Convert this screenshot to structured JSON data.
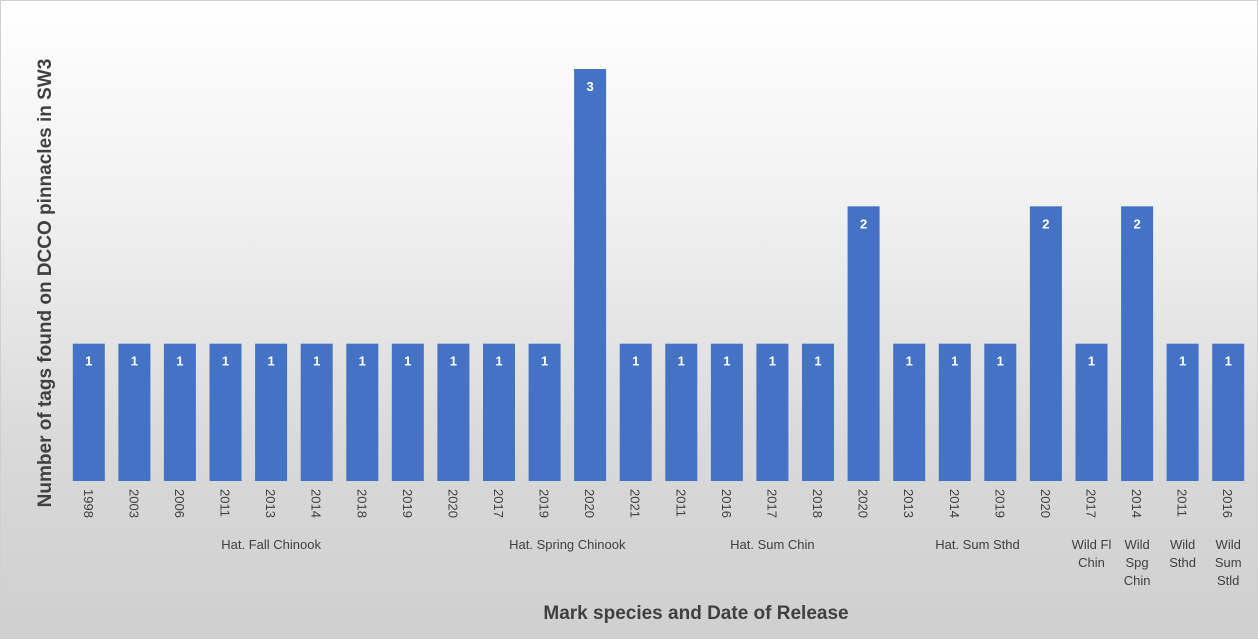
{
  "chart_data": {
    "type": "bar",
    "xlabel": "Mark species and Date of Release",
    "ylabel": "Number of tags found on DCCO pinnacles in SW3",
    "ylim": [
      0,
      3
    ],
    "grid": false,
    "legend": "none",
    "bar_color": "#4472c4",
    "categories": [
      {
        "year": "1998",
        "group": "Hat. Fall Chinook",
        "value": 1
      },
      {
        "year": "2003",
        "group": "Hat. Fall Chinook",
        "value": 1
      },
      {
        "year": "2006",
        "group": "Hat. Fall Chinook",
        "value": 1
      },
      {
        "year": "2011",
        "group": "Hat. Fall Chinook",
        "value": 1
      },
      {
        "year": "2013",
        "group": "Hat. Fall Chinook",
        "value": 1
      },
      {
        "year": "2014",
        "group": "Hat. Fall Chinook",
        "value": 1
      },
      {
        "year": "2018",
        "group": "Hat. Fall Chinook",
        "value": 1
      },
      {
        "year": "2019",
        "group": "Hat. Fall Chinook",
        "value": 1
      },
      {
        "year": "2020",
        "group": "Hat. Fall Chinook",
        "value": 1
      },
      {
        "year": "2017",
        "group": "Hat. Spring Chinook",
        "value": 1
      },
      {
        "year": "2019",
        "group": "Hat. Spring Chinook",
        "value": 1
      },
      {
        "year": "2020",
        "group": "Hat. Spring Chinook",
        "value": 3
      },
      {
        "year": "2021",
        "group": "Hat. Spring Chinook",
        "value": 1
      },
      {
        "year": "2011",
        "group": "Hat. Sum Chin",
        "value": 1
      },
      {
        "year": "2016",
        "group": "Hat. Sum Chin",
        "value": 1
      },
      {
        "year": "2017",
        "group": "Hat. Sum Chin",
        "value": 1
      },
      {
        "year": "2018",
        "group": "Hat. Sum Chin",
        "value": 1
      },
      {
        "year": "2020",
        "group": "Hat. Sum Chin",
        "value": 2
      },
      {
        "year": "2013",
        "group": "Hat. Sum Sthd",
        "value": 1
      },
      {
        "year": "2014",
        "group": "Hat. Sum Sthd",
        "value": 1
      },
      {
        "year": "2019",
        "group": "Hat. Sum Sthd",
        "value": 1
      },
      {
        "year": "2020",
        "group": "Hat. Sum Sthd",
        "value": 2
      },
      {
        "year": "2017",
        "group": "Wild Fl Chin",
        "value": 1
      },
      {
        "year": "2014",
        "group": "Wild Spg Chin",
        "value": 2
      },
      {
        "year": "2011",
        "group": "Wild Sthd",
        "value": 1
      },
      {
        "year": "2016",
        "group": "Wild Sum Stld",
        "value": 1
      }
    ],
    "groups": [
      {
        "name": "Hat. Fall Chinook",
        "lines": [
          "Hat. Fall Chinook"
        ]
      },
      {
        "name": "Hat. Spring Chinook",
        "lines": [
          "Hat. Spring Chinook"
        ]
      },
      {
        "name": "Hat. Sum Chin",
        "lines": [
          "Hat. Sum Chin"
        ]
      },
      {
        "name": "Hat. Sum Sthd",
        "lines": [
          "Hat. Sum Sthd"
        ]
      },
      {
        "name": "Wild Fl Chin",
        "lines": [
          "Wild Fl",
          "Chin"
        ]
      },
      {
        "name": "Wild Spg Chin",
        "lines": [
          "Wild",
          "Spg",
          "Chin"
        ]
      },
      {
        "name": "Wild Sthd",
        "lines": [
          "Wild",
          "Sthd"
        ]
      },
      {
        "name": "Wild Sum Stld",
        "lines": [
          "Wild",
          "Sum",
          "Stld"
        ]
      }
    ]
  }
}
